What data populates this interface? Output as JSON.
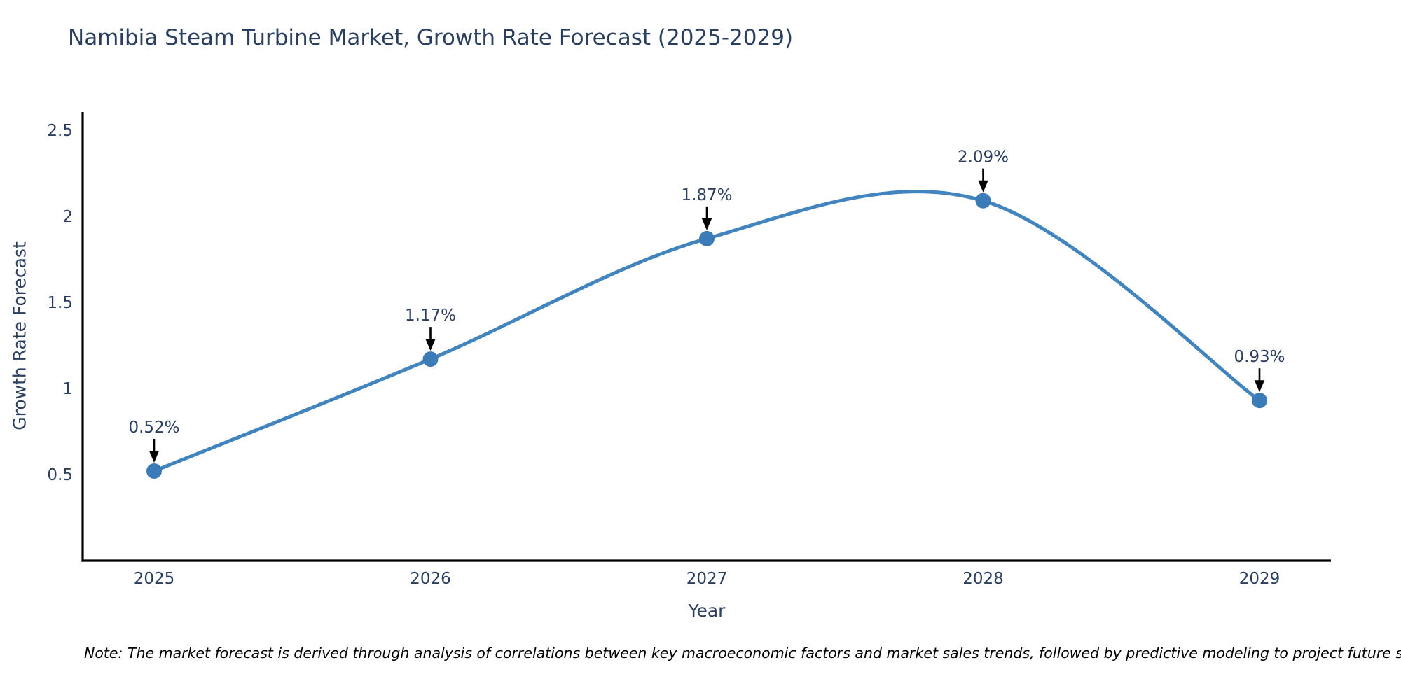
{
  "page": {
    "background_color": "#ffffff"
  },
  "chart_data": {
    "type": "line",
    "title": "Namibia Steam Turbine Market, Growth Rate Forecast (2025-2029)",
    "xlabel": "Year",
    "ylabel": "Growth Rate Forecast",
    "x": [
      2025,
      2026,
      2027,
      2028,
      2029
    ],
    "categories": [
      "2025",
      "2026",
      "2027",
      "2028",
      "2029"
    ],
    "series": [
      {
        "name": "Growth Rate Forecast",
        "values": [
          0.52,
          1.17,
          1.87,
          2.09,
          0.93
        ],
        "labels": [
          "0.52%",
          "1.17%",
          "1.87%",
          "2.09%",
          "0.93%"
        ]
      }
    ],
    "ylim": [
      0,
      2.605
    ],
    "yticks": {
      "values": [
        0.5,
        1,
        1.5,
        2,
        2.5
      ],
      "labels": [
        "0.5",
        "1",
        "1.5",
        "2",
        "2.5"
      ]
    },
    "grid": false,
    "legend": "none",
    "line_shape": "spline",
    "line_color": "#4284bd",
    "marker_color": "#3b7cb8",
    "annotation_arrow_color": "#000000",
    "annotation_text_color": "#2a3f5f",
    "axis_line_color": "#000000",
    "tick_label_color": "#2a3f5f",
    "title_color": "#2a3f5f"
  },
  "footnote": {
    "text": "Note: The market forecast is derived through analysis of correlations between key macroeconomic factors and market sales trends, followed by predictive modeling to project future sales"
  }
}
